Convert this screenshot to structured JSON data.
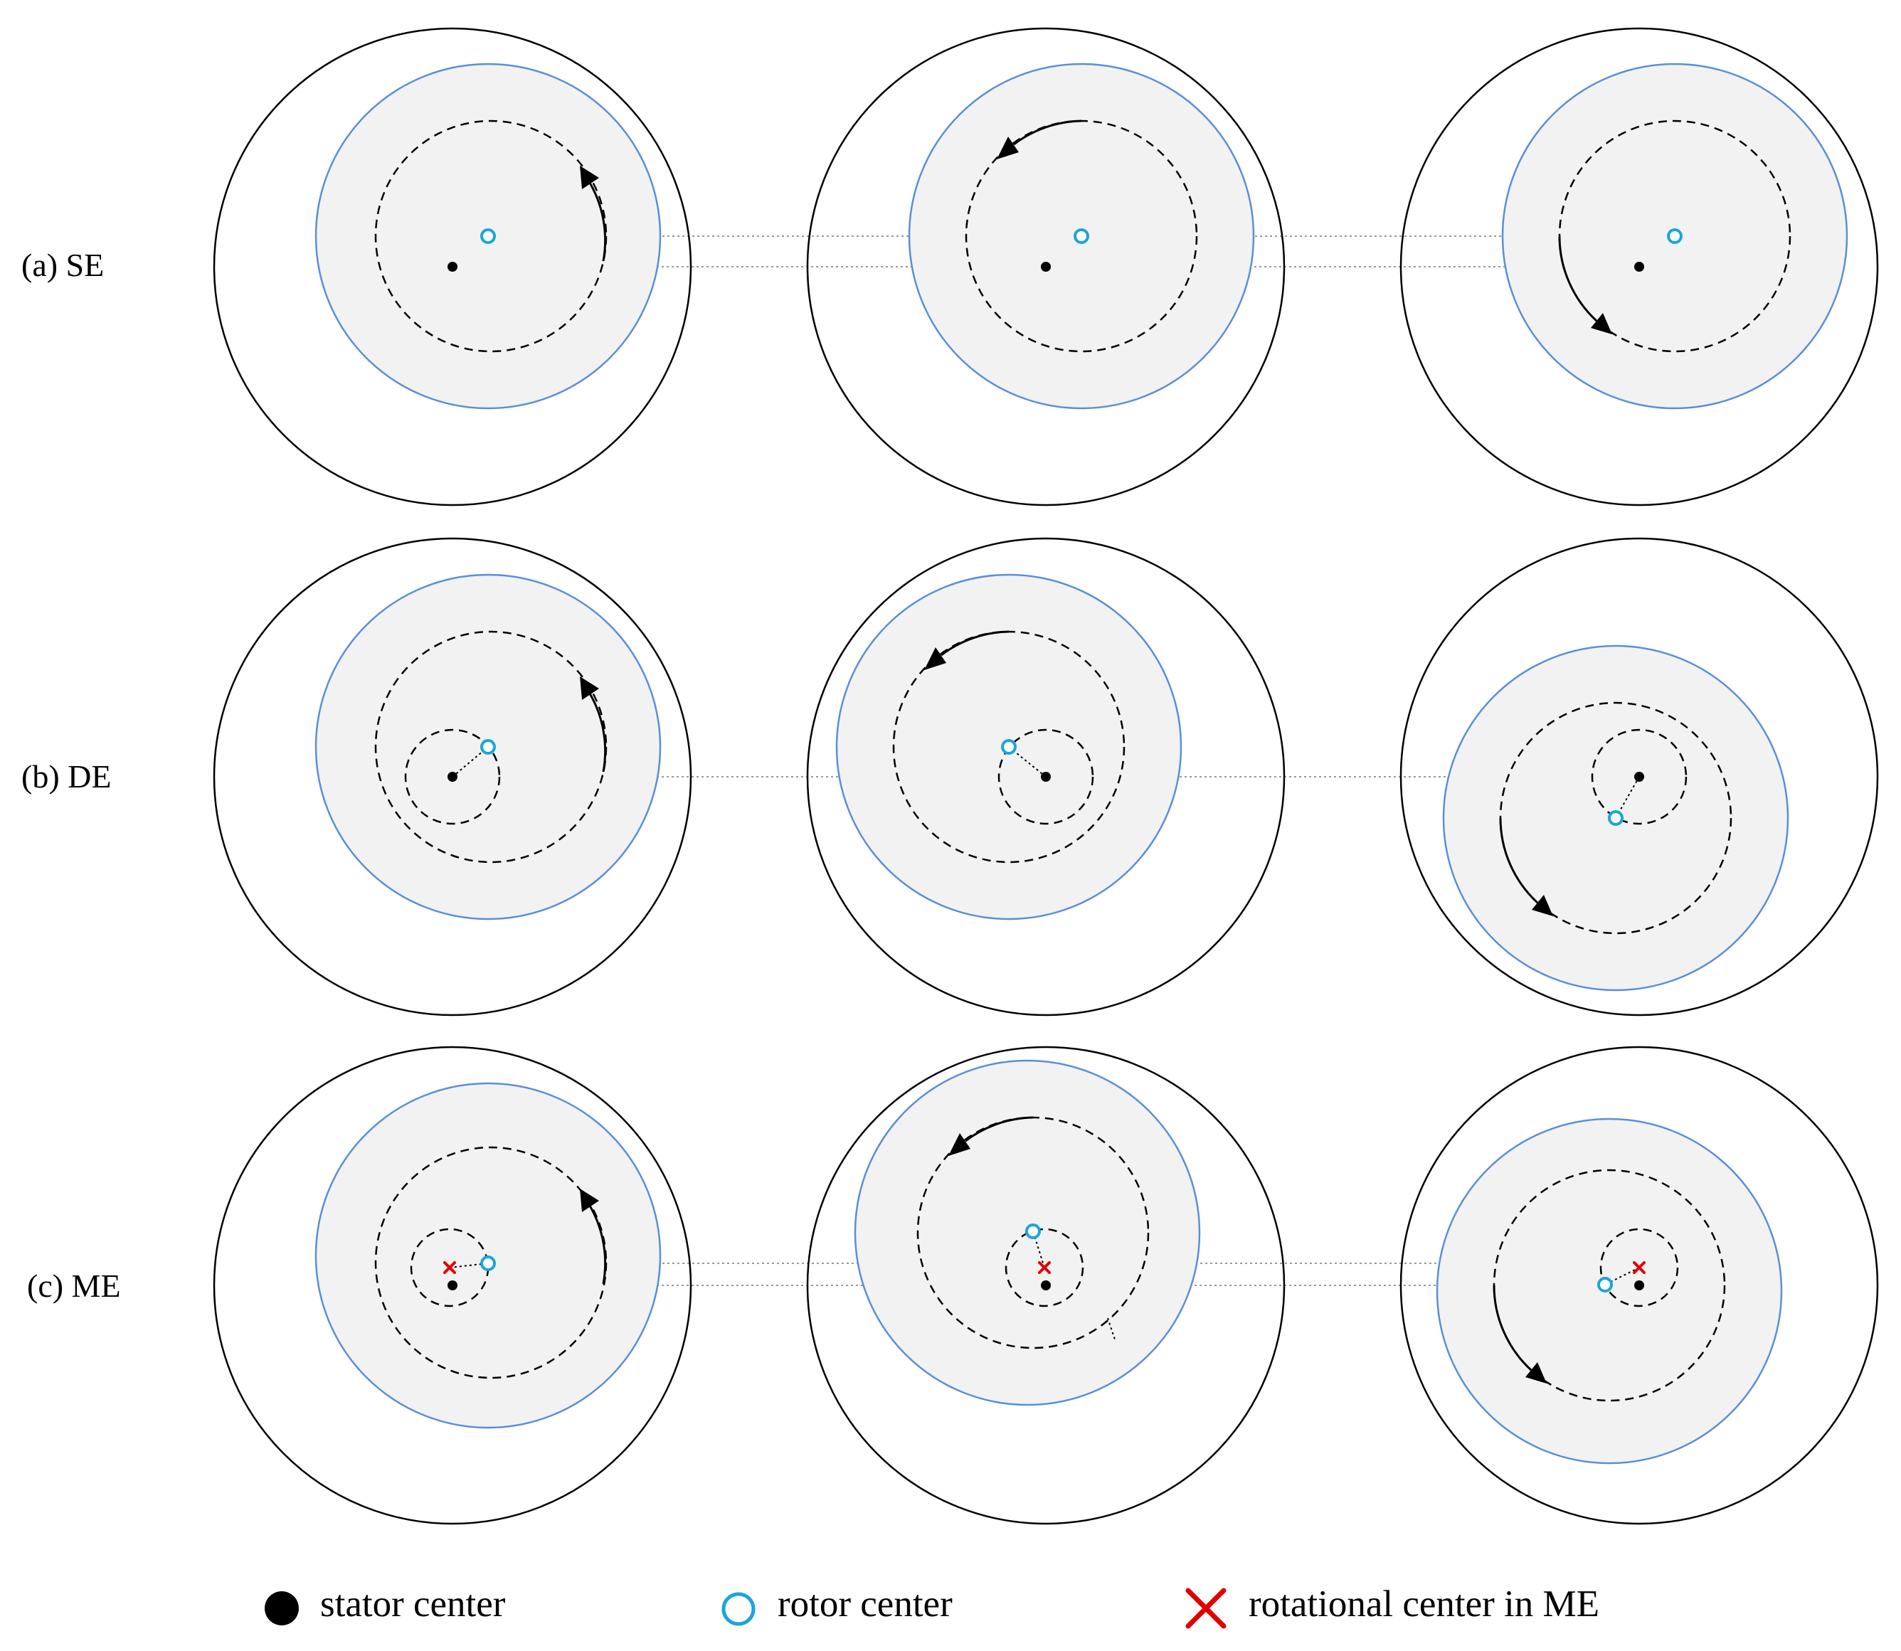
{
  "rows": [
    {
      "label": "(a) SE"
    },
    {
      "label": "(b) DE"
    },
    {
      "label": "(c) ME"
    }
  ],
  "legend": [
    {
      "marker": "stator-center",
      "text": "stator center"
    },
    {
      "marker": "rotor-center",
      "text": "rotor center"
    },
    {
      "marker": "rotational-center",
      "text": "rotational center in ME"
    }
  ],
  "colors": {
    "rotor_fill": "#f2f2f2",
    "rotor_outline": "#5b8fd6",
    "rotor_center": "#1aa6d9",
    "stator_center": "#000000",
    "rotational_center": "#e00000"
  }
}
